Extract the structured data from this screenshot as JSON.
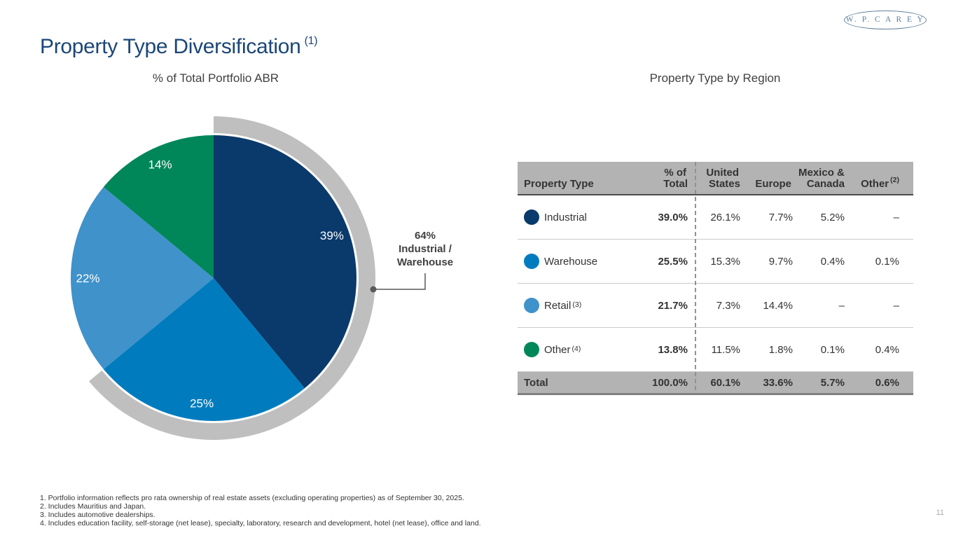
{
  "slide": {
    "title": "Property Type Diversification",
    "title_superscript": "(1)",
    "logo_text": "W. P. C A R E Y",
    "page_number": "11"
  },
  "left_section": {
    "subtitle": "% of Total Portfolio ABR"
  },
  "right_section": {
    "subtitle": "Property Type by Region"
  },
  "chart_data": {
    "type": "pie",
    "title": "% of Total Portfolio ABR",
    "categories": [
      "Industrial",
      "Warehouse",
      "Retail",
      "Other"
    ],
    "values": [
      39,
      25,
      22,
      14
    ],
    "slice_labels": [
      "39%",
      "25%",
      "22%",
      "14%"
    ],
    "colors": [
      "#0a3a6b",
      "#007cbe",
      "#3f92ca",
      "#008759"
    ],
    "start_position": "12 o'clock, clockwise",
    "label_color": "#ffffff",
    "highlight_arc": {
      "percent": 64,
      "covers": [
        "Industrial",
        "Warehouse"
      ],
      "color": "#bfbfbf",
      "callout_lines": [
        "64%",
        "Industrial /",
        "Warehouse"
      ],
      "connector_color": "#595959"
    }
  },
  "table": {
    "headers": [
      {
        "l1": "Property Type",
        "l2": "",
        "sup": ""
      },
      {
        "l1": "% of",
        "l2": "Total",
        "sup": ""
      },
      {
        "l1": "United",
        "l2": "States",
        "sup": ""
      },
      {
        "l1": "Europe",
        "l2": "",
        "sup": ""
      },
      {
        "l1": "Mexico &",
        "l2": "Canada",
        "sup": ""
      },
      {
        "l1": "Other",
        "l2": "",
        "sup": "(2)"
      }
    ],
    "rows": [
      {
        "label": "Industrial",
        "sup": "",
        "dot_color": "#0a3a6b",
        "values": [
          "39.0%",
          "26.1%",
          "7.7%",
          "5.2%",
          "–"
        ]
      },
      {
        "label": "Warehouse",
        "sup": "",
        "dot_color": "#007cbe",
        "values": [
          "25.5%",
          "15.3%",
          "9.7%",
          "0.4%",
          "0.1%"
        ]
      },
      {
        "label": "Retail",
        "sup": "(3)",
        "dot_color": "#3f92ca",
        "values": [
          "21.7%",
          "7.3%",
          "14.4%",
          "–",
          "–"
        ]
      },
      {
        "label": "Other",
        "sup": "(4)",
        "dot_color": "#008759",
        "values": [
          "13.8%",
          "11.5%",
          "1.8%",
          "0.1%",
          "0.4%"
        ]
      }
    ],
    "total": {
      "label": "Total",
      "values": [
        "100.0%",
        "60.1%",
        "33.6%",
        "5.7%",
        "0.6%"
      ]
    }
  },
  "footnotes": [
    "1. Portfolio information reflects pro rata ownership of real estate assets (excluding operating properties) as of September 30, 2025.",
    "2. Includes Mauritius and Japan.",
    "3. Includes automotive dealerships.",
    "4. Includes education facility, self-storage (net lease), specialty, laboratory, research and development, hotel (net lease), office and land."
  ]
}
